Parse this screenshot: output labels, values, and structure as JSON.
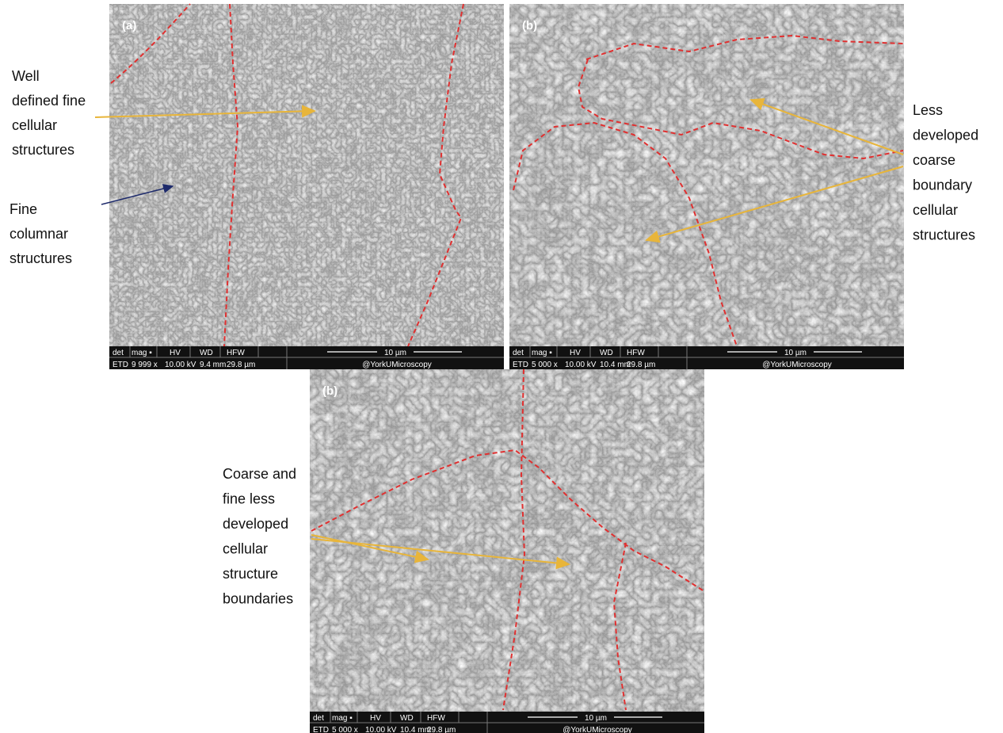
{
  "panels": [
    {
      "label": "(a)",
      "info": {
        "headers": [
          "det",
          "mag ▪",
          "HV",
          "WD",
          "HFW"
        ],
        "values": [
          "ETD",
          "9 999 x",
          "10.00 kV",
          "9.4 mm",
          "29.8 µm"
        ],
        "scale": "10 µm",
        "credit": "@YorkUMicroscopy"
      }
    },
    {
      "label": "(b)",
      "info": {
        "headers": [
          "det",
          "mag ▪",
          "HV",
          "WD",
          "HFW"
        ],
        "values": [
          "ETD",
          "5 000 x",
          "10.00 kV",
          "10.4 mm",
          "29.8 µm"
        ],
        "scale": "10 µm",
        "credit": "@YorkUMicroscopy"
      }
    },
    {
      "label": "(b)",
      "info": {
        "headers": [
          "det",
          "mag ▪",
          "HV",
          "WD",
          "HFW"
        ],
        "values": [
          "ETD",
          "5 000 x",
          "10.00 kV",
          "10.4 mm",
          "29.8 µm"
        ],
        "scale": "10 µm",
        "credit": "@YorkUMicroscopy"
      }
    }
  ],
  "annotations": [
    {
      "lines": [
        "Well",
        "defined fine",
        "cellular",
        "structures"
      ]
    },
    {
      "lines": [
        "Fine",
        "columnar",
        "structures"
      ]
    },
    {
      "lines": [
        "Less",
        "developed",
        "coarse",
        "boundary",
        "cellular",
        "structures"
      ]
    },
    {
      "lines": [
        "Coarse and",
        "fine less",
        "developed",
        "cellular",
        "structure",
        "boundaries"
      ]
    }
  ]
}
